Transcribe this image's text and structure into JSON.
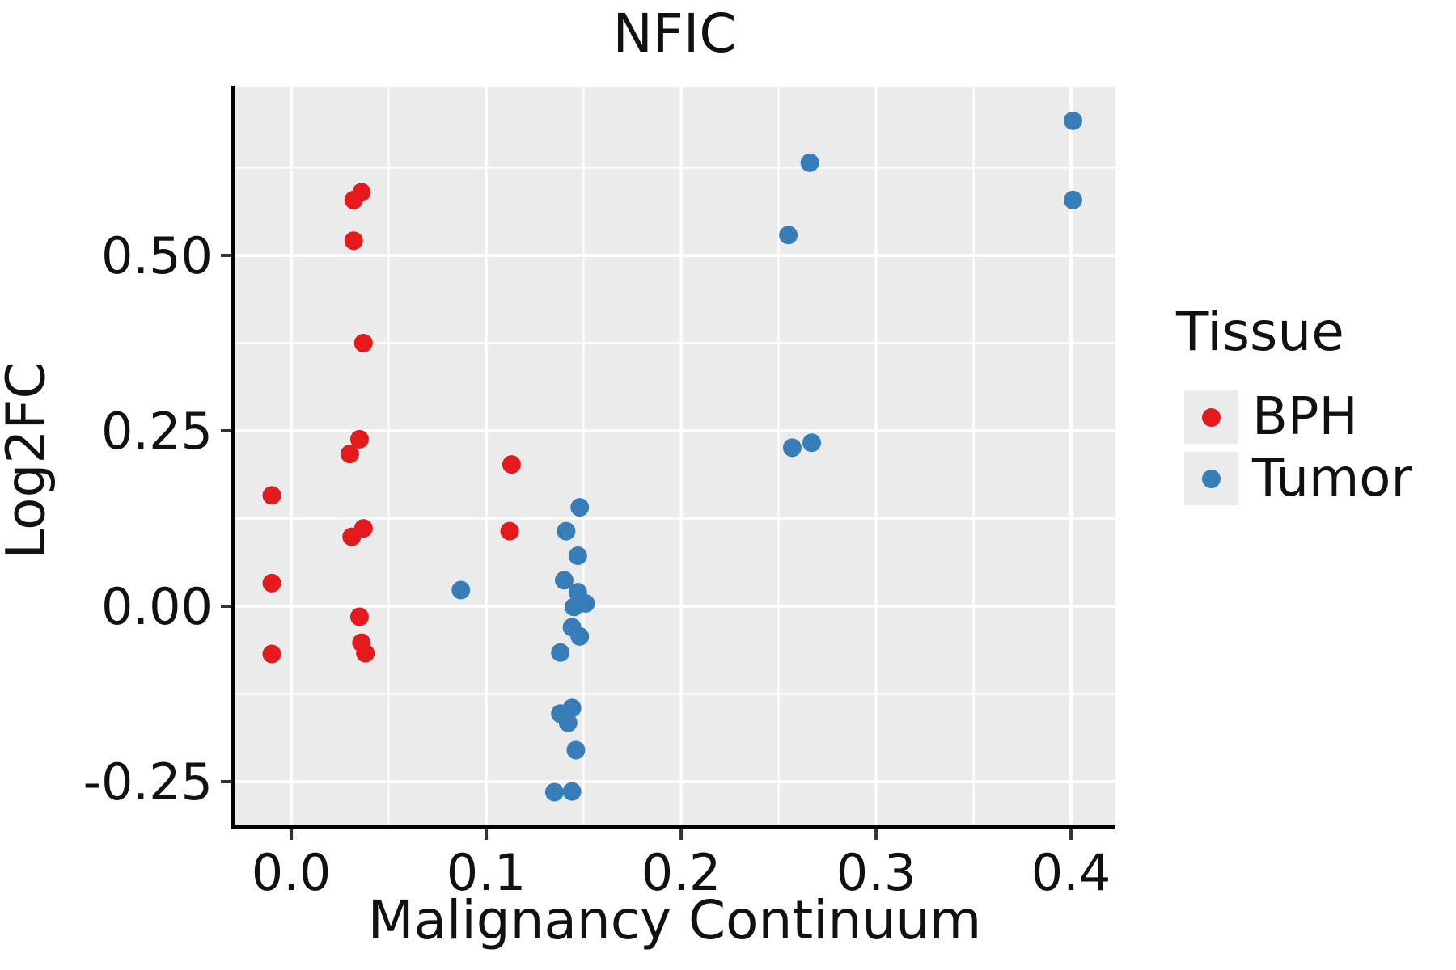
{
  "chart_data": {
    "type": "scatter",
    "title": "NFIC",
    "xlabel": "Malignancy Continuum",
    "ylabel": "Log2FC",
    "xlim": [
      -0.0295,
      0.4228
    ],
    "ylim": [
      -0.3122,
      0.7396
    ],
    "x_major_ticks": [
      0.0,
      0.1,
      0.2,
      0.3,
      0.4
    ],
    "x_tick_labels": [
      "0.0",
      "0.1",
      "0.2",
      "0.3",
      "0.4"
    ],
    "x_minor_ticks": [
      0.05,
      0.15,
      0.25,
      0.35
    ],
    "y_major_ticks": [
      -0.25,
      0.0,
      0.25,
      0.5
    ],
    "y_tick_labels": [
      "-0.25",
      "0.00",
      "0.25",
      "0.50"
    ],
    "y_minor_ticks": [
      -0.125,
      0.125,
      0.375,
      0.625
    ],
    "grid": true,
    "panel_background": "#EBEBEB",
    "gridline_color": "#FFFFFF",
    "axis_color": "#000000",
    "legend_title": "Tissue",
    "legend_position": "right",
    "series": [
      {
        "name": "BPH",
        "color": "#E41A1C",
        "points": [
          [
            -0.01,
            0.158
          ],
          [
            -0.01,
            0.033
          ],
          [
            -0.01,
            -0.068
          ],
          [
            0.032,
            0.579
          ],
          [
            0.036,
            0.59
          ],
          [
            0.032,
            0.521
          ],
          [
            0.037,
            0.375
          ],
          [
            0.035,
            0.238
          ],
          [
            0.03,
            0.217
          ],
          [
            0.037,
            0.111
          ],
          [
            0.031,
            0.099
          ],
          [
            0.035,
            -0.015
          ],
          [
            0.036,
            -0.052
          ],
          [
            0.038,
            -0.067
          ],
          [
            0.113,
            0.202
          ],
          [
            0.112,
            0.107
          ]
        ]
      },
      {
        "name": "Tumor",
        "color": "#377EB8",
        "points": [
          [
            0.087,
            0.023
          ],
          [
            0.148,
            0.141
          ],
          [
            0.141,
            0.107
          ],
          [
            0.147,
            0.072
          ],
          [
            0.14,
            0.037
          ],
          [
            0.147,
            0.02
          ],
          [
            0.151,
            0.004
          ],
          [
            0.145,
            -0.001
          ],
          [
            0.144,
            -0.03
          ],
          [
            0.148,
            -0.043
          ],
          [
            0.138,
            -0.066
          ],
          [
            0.144,
            -0.145
          ],
          [
            0.138,
            -0.153
          ],
          [
            0.142,
            -0.166
          ],
          [
            0.146,
            -0.205
          ],
          [
            0.135,
            -0.265
          ],
          [
            0.144,
            -0.264
          ],
          [
            0.255,
            0.529
          ],
          [
            0.266,
            0.632
          ],
          [
            0.257,
            0.226
          ],
          [
            0.267,
            0.233
          ],
          [
            0.401,
            0.692
          ],
          [
            0.401,
            0.579
          ]
        ]
      }
    ]
  }
}
